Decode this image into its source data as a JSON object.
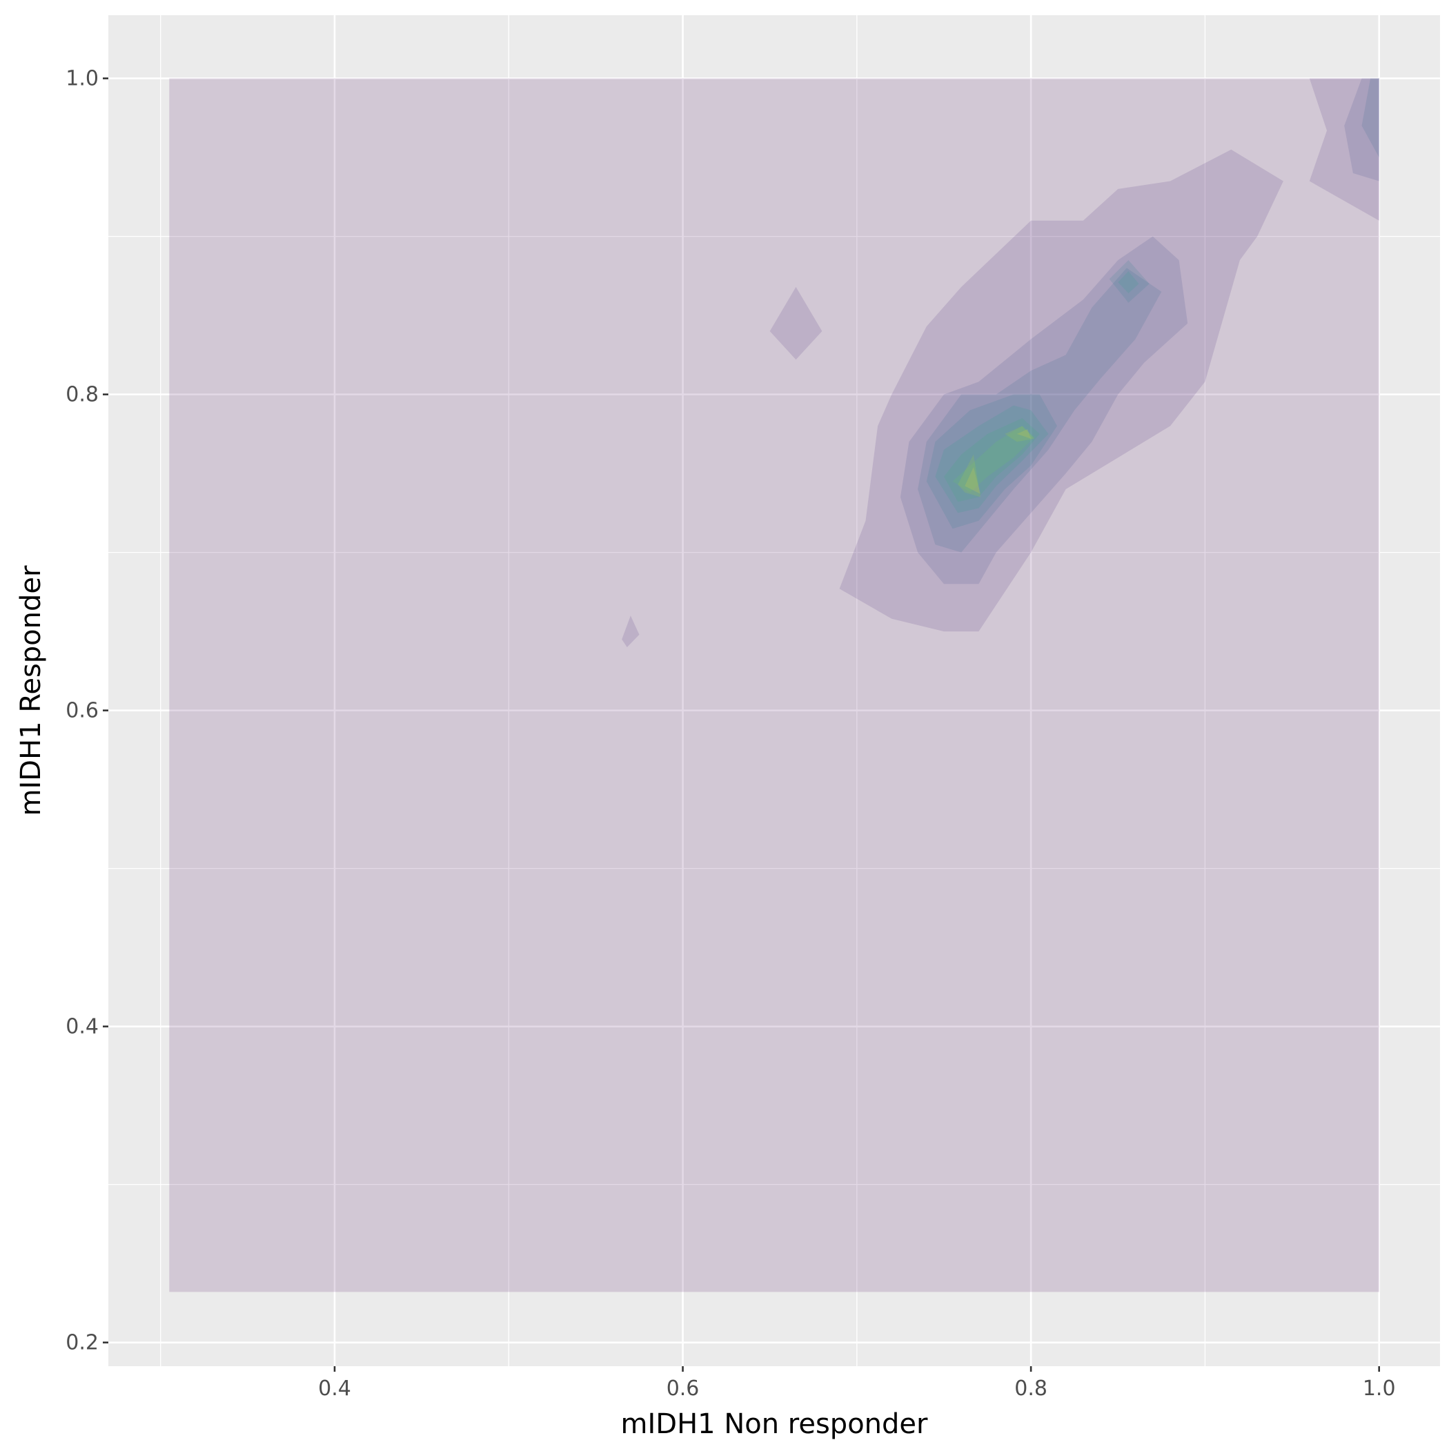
{
  "chart_data": {
    "type": "density_contour_filled",
    "title": "",
    "xlabel": "mIDH1 Non responder",
    "ylabel": "mIDH1 Responder",
    "xlim": [
      0.27,
      1.035
    ],
    "ylim": [
      0.185,
      1.04
    ],
    "x_ticks": [
      0.4,
      0.6,
      0.8,
      1.0
    ],
    "x_tick_labels": [
      "0.4",
      "0.6",
      "0.8",
      "1.0"
    ],
    "y_ticks": [
      0.2,
      0.4,
      0.6,
      0.8,
      1.0
    ],
    "y_tick_labels": [
      "0.2",
      "0.4",
      "0.6",
      "0.8",
      "1.0"
    ],
    "x_minor_ticks": [
      0.3,
      0.5,
      0.7,
      0.9
    ],
    "y_minor_ticks": [
      0.3,
      0.5,
      0.7,
      0.9
    ],
    "grid": true,
    "legend": "none",
    "colors": {
      "panel_background": "#ebebeb",
      "grid": "#ffffff",
      "levels": [
        "#440154",
        "#482878",
        "#3e4989",
        "#31688e",
        "#26828e",
        "#1f9e89",
        "#35b779",
        "#6ece58",
        "#b5de2b",
        "#fde725"
      ]
    },
    "density_levels": [
      {
        "level": 1,
        "polygons": [
          [
            [
              0.305,
              0.232
            ],
            [
              1.0,
              0.232
            ],
            [
              1.0,
              1.0
            ],
            [
              0.305,
              1.0
            ]
          ]
        ]
      },
      {
        "level": 2,
        "polygons": [
          [
            [
              0.69,
              0.677
            ],
            [
              0.705,
              0.72
            ],
            [
              0.712,
              0.78
            ],
            [
              0.72,
              0.8
            ],
            [
              0.74,
              0.843
            ],
            [
              0.76,
              0.868
            ],
            [
              0.8,
              0.91
            ],
            [
              0.83,
              0.91
            ],
            [
              0.85,
              0.93
            ],
            [
              0.88,
              0.935
            ],
            [
              0.915,
              0.955
            ],
            [
              0.945,
              0.935
            ],
            [
              0.93,
              0.9
            ],
            [
              0.92,
              0.885
            ],
            [
              0.9,
              0.808
            ],
            [
              0.88,
              0.78
            ],
            [
              0.85,
              0.76
            ],
            [
              0.82,
              0.74
            ],
            [
              0.8,
              0.7
            ],
            [
              0.77,
              0.65
            ],
            [
              0.75,
              0.65
            ],
            [
              0.72,
              0.658
            ]
          ],
          [
            [
              0.96,
              0.935
            ],
            [
              0.97,
              0.967
            ],
            [
              0.96,
              1.0
            ],
            [
              1.0,
              1.0
            ],
            [
              1.0,
              0.91
            ]
          ],
          [
            [
              0.65,
              0.84
            ],
            [
              0.665,
              0.868
            ],
            [
              0.68,
              0.84
            ],
            [
              0.665,
              0.822
            ]
          ],
          [
            [
              0.565,
              0.645
            ],
            [
              0.57,
              0.66
            ],
            [
              0.575,
              0.648
            ],
            [
              0.568,
              0.64
            ]
          ]
        ]
      },
      {
        "level": 3,
        "polygons": [
          [
            [
              0.725,
              0.735
            ],
            [
              0.73,
              0.77
            ],
            [
              0.75,
              0.8
            ],
            [
              0.77,
              0.808
            ],
            [
              0.8,
              0.835
            ],
            [
              0.83,
              0.86
            ],
            [
              0.85,
              0.885
            ],
            [
              0.87,
              0.9
            ],
            [
              0.885,
              0.885
            ],
            [
              0.89,
              0.845
            ],
            [
              0.865,
              0.82
            ],
            [
              0.85,
              0.8
            ],
            [
              0.835,
              0.77
            ],
            [
              0.82,
              0.75
            ],
            [
              0.8,
              0.725
            ],
            [
              0.78,
              0.7
            ],
            [
              0.77,
              0.68
            ],
            [
              0.75,
              0.68
            ],
            [
              0.735,
              0.7
            ]
          ],
          [
            [
              0.98,
              0.97
            ],
            [
              0.99,
              1.0
            ],
            [
              1.0,
              1.0
            ],
            [
              1.0,
              0.935
            ],
            [
              0.985,
              0.94
            ]
          ]
        ]
      },
      {
        "level": 4,
        "polygons": [
          [
            [
              0.735,
              0.74
            ],
            [
              0.74,
              0.77
            ],
            [
              0.76,
              0.8
            ],
            [
              0.78,
              0.8
            ],
            [
              0.8,
              0.815
            ],
            [
              0.82,
              0.825
            ],
            [
              0.835,
              0.855
            ],
            [
              0.855,
              0.88
            ],
            [
              0.875,
              0.865
            ],
            [
              0.86,
              0.835
            ],
            [
              0.84,
              0.81
            ],
            [
              0.825,
              0.79
            ],
            [
              0.81,
              0.765
            ],
            [
              0.79,
              0.74
            ],
            [
              0.775,
              0.72
            ],
            [
              0.76,
              0.7
            ],
            [
              0.745,
              0.705
            ]
          ],
          [
            [
              0.99,
              0.97
            ],
            [
              0.995,
              1.0
            ],
            [
              1.0,
              1.0
            ],
            [
              1.0,
              0.95
            ]
          ]
        ]
      },
      {
        "level": 5,
        "polygons": [
          [
            [
              0.74,
              0.745
            ],
            [
              0.745,
              0.77
            ],
            [
              0.765,
              0.79
            ],
            [
              0.79,
              0.8
            ],
            [
              0.805,
              0.8
            ],
            [
              0.815,
              0.78
            ],
            [
              0.8,
              0.755
            ],
            [
              0.785,
              0.74
            ],
            [
              0.77,
              0.72
            ],
            [
              0.755,
              0.715
            ]
          ],
          [
            [
              0.845,
              0.873
            ],
            [
              0.856,
              0.885
            ],
            [
              0.868,
              0.87
            ],
            [
              0.856,
              0.858
            ]
          ]
        ]
      },
      {
        "level": 6,
        "polygons": [
          [
            [
              0.745,
              0.748
            ],
            [
              0.75,
              0.765
            ],
            [
              0.77,
              0.78
            ],
            [
              0.79,
              0.793
            ],
            [
              0.8,
              0.79
            ],
            [
              0.81,
              0.775
            ],
            [
              0.795,
              0.758
            ],
            [
              0.78,
              0.742
            ],
            [
              0.77,
              0.728
            ],
            [
              0.758,
              0.725
            ]
          ],
          [
            [
              0.85,
              0.871
            ],
            [
              0.856,
              0.878
            ],
            [
              0.862,
              0.87
            ],
            [
              0.856,
              0.864
            ]
          ]
        ]
      },
      {
        "level": 7,
        "polygons": [
          [
            [
              0.75,
              0.748
            ],
            [
              0.76,
              0.762
            ],
            [
              0.775,
              0.775
            ],
            [
              0.795,
              0.785
            ],
            [
              0.805,
              0.775
            ],
            [
              0.795,
              0.762
            ],
            [
              0.78,
              0.748
            ],
            [
              0.77,
              0.735
            ],
            [
              0.758,
              0.732
            ]
          ]
        ]
      },
      {
        "level": 8,
        "polygons": [
          [
            [
              0.755,
              0.745
            ],
            [
              0.765,
              0.755
            ],
            [
              0.78,
              0.77
            ],
            [
              0.795,
              0.78
            ],
            [
              0.802,
              0.773
            ],
            [
              0.79,
              0.76
            ],
            [
              0.775,
              0.748
            ],
            [
              0.765,
              0.738
            ]
          ]
        ]
      },
      {
        "level": 9,
        "polygons": [
          [
            [
              0.758,
              0.743
            ],
            [
              0.767,
              0.762
            ],
            [
              0.771,
              0.735
            ],
            [
              0.762,
              0.738
            ]
          ],
          [
            [
              0.785,
              0.775
            ],
            [
              0.795,
              0.78
            ],
            [
              0.802,
              0.772
            ],
            [
              0.792,
              0.77
            ]
          ]
        ]
      },
      {
        "level": 10,
        "polygons": [
          [
            [
              0.762,
              0.742
            ],
            [
              0.767,
              0.754
            ],
            [
              0.771,
              0.737
            ]
          ],
          [
            [
              0.792,
              0.775
            ],
            [
              0.798,
              0.778
            ],
            [
              0.8,
              0.772
            ]
          ]
        ]
      }
    ]
  }
}
